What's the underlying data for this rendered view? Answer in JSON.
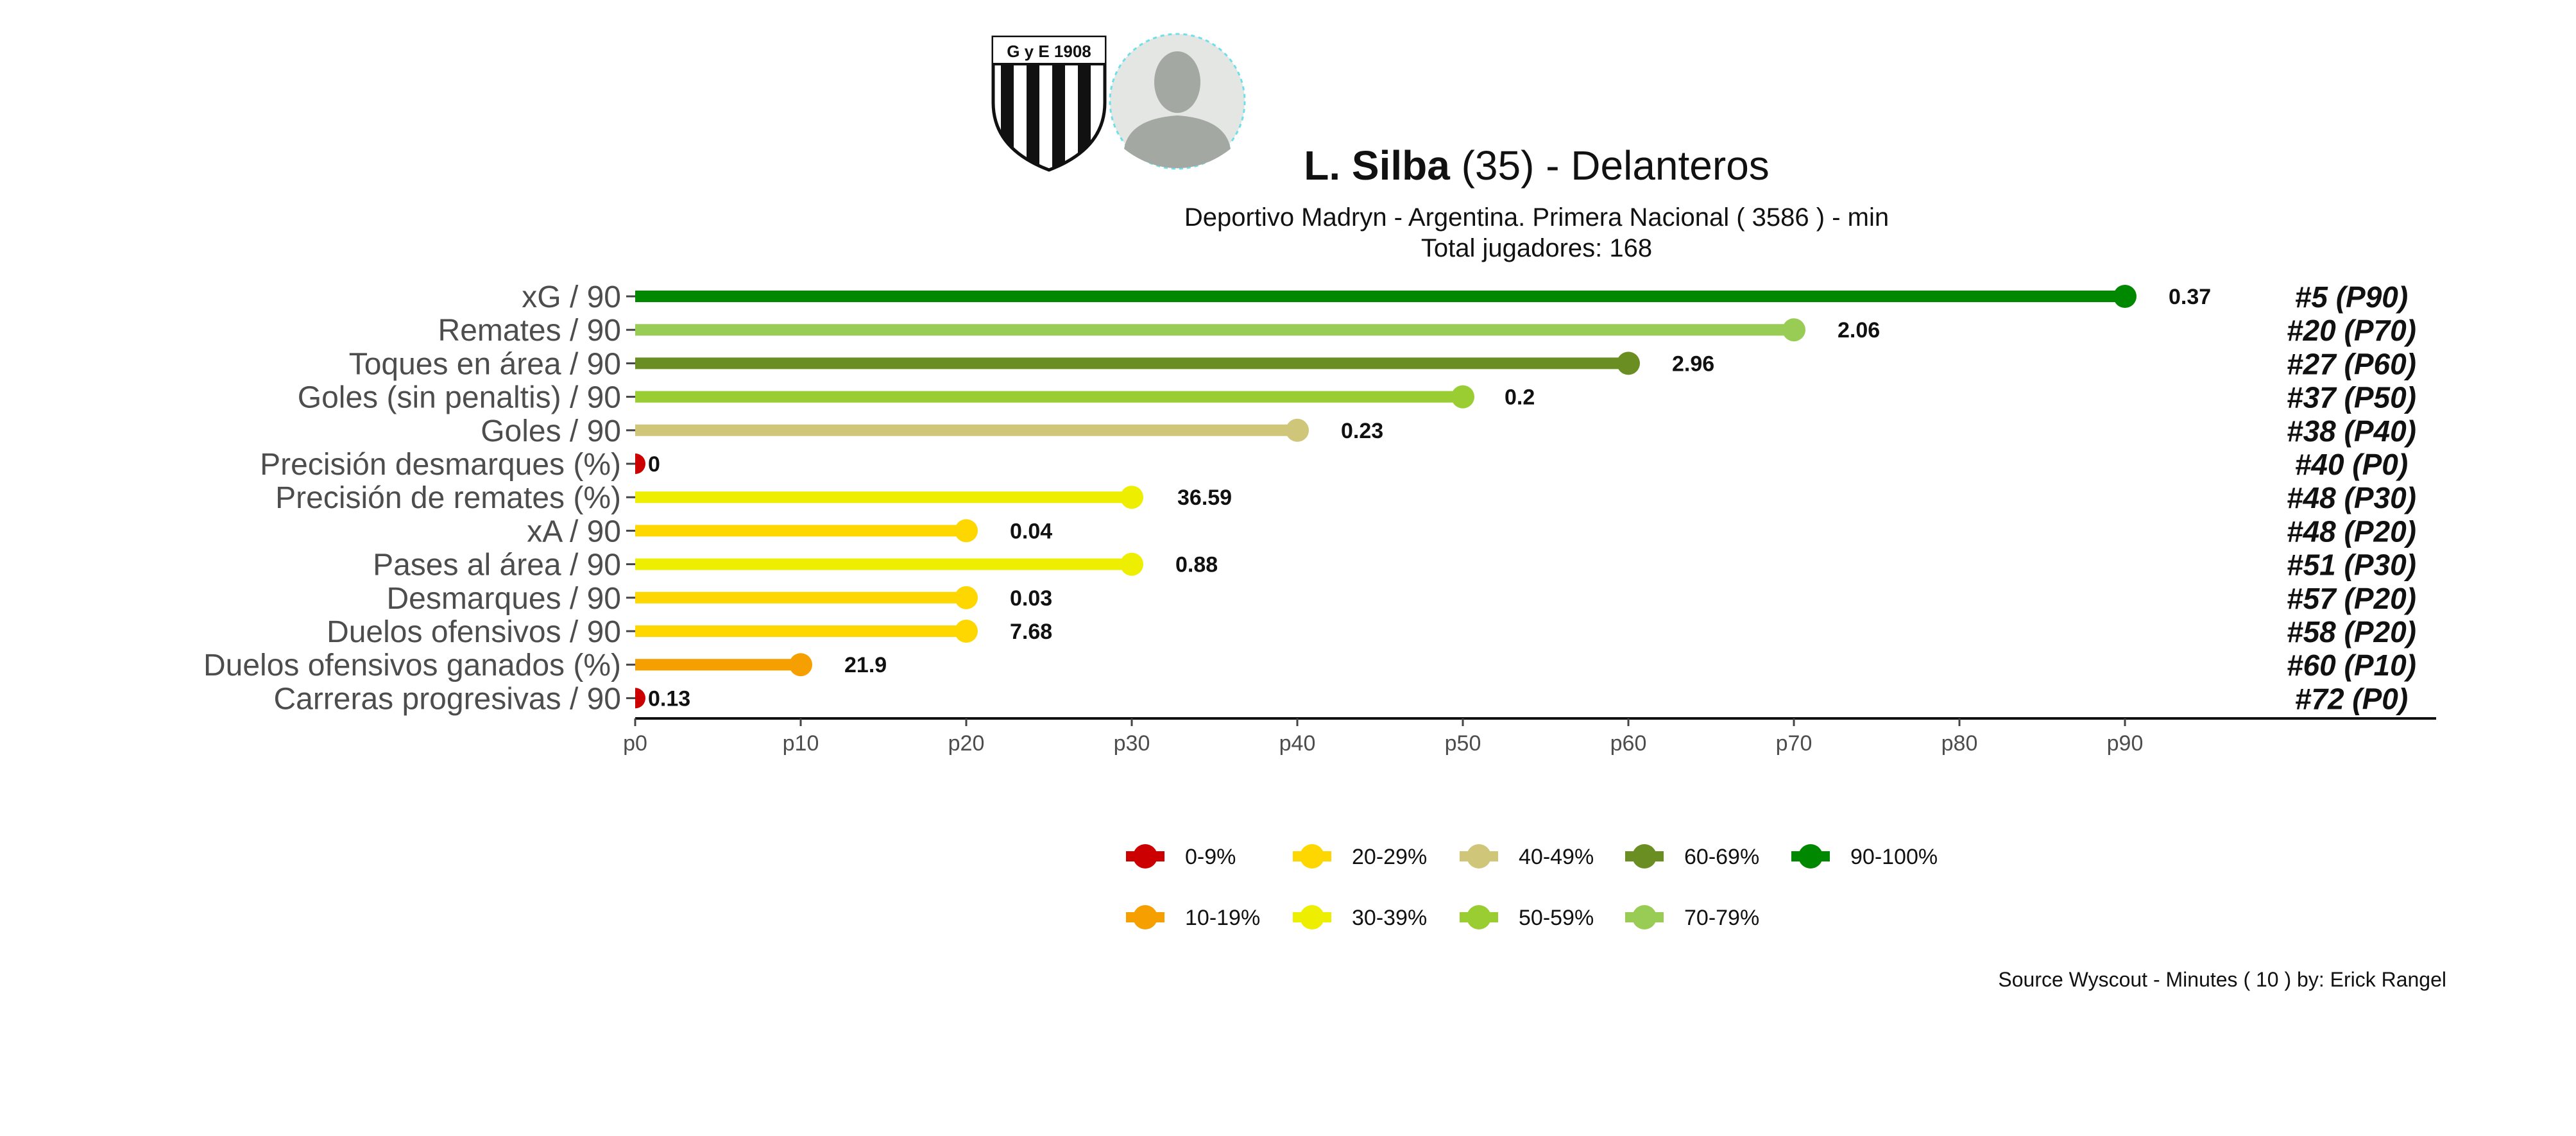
{
  "header": {
    "player_name": "L. Silba",
    "age": "(35)",
    "separator": "-",
    "position": "Delanteros",
    "subtitle": "Deportivo Madryn  -  Argentina. Primera Nacional  ( 3586 ) - min",
    "total_players": "Total jugadores:  168",
    "club_badge_text": "G y E  1908"
  },
  "chart_data": {
    "type": "lollipop",
    "x_ticks": [
      "p0",
      "p10",
      "p20",
      "p30",
      "p40",
      "p50",
      "p60",
      "p70",
      "p80",
      "p90"
    ],
    "xlim": [
      0,
      100
    ],
    "grid": false,
    "metrics": [
      {
        "label": "xG / 90",
        "percentile": 90,
        "value": "0.37",
        "rank": "#5 (P90)",
        "color": "#008800"
      },
      {
        "label": "Remates / 90",
        "percentile": 70,
        "value": "2.06",
        "rank": "#20 (P70)",
        "color": "#99cc55"
      },
      {
        "label": "Toques en área / 90",
        "percentile": 60,
        "value": "2.96",
        "rank": "#27 (P60)",
        "color": "#6b8e23"
      },
      {
        "label": "Goles (sin penaltis) / 90",
        "percentile": 50,
        "value": "0.2",
        "rank": "#37 (P50)",
        "color": "#9acd32"
      },
      {
        "label": "Goles / 90",
        "percentile": 40,
        "value": "0.23",
        "rank": "#38 (P40)",
        "color": "#cfc67a"
      },
      {
        "label": "Precisión desmarques (%)",
        "percentile": 0,
        "value": "0",
        "rank": "#40 (P0)",
        "color": "#cc0000"
      },
      {
        "label": "Precisión de remates (%)",
        "percentile": 30,
        "value": "36.59",
        "rank": "#48 (P30)",
        "color": "#eeee00"
      },
      {
        "label": "xA / 90",
        "percentile": 20,
        "value": "0.04",
        "rank": "#48 (P20)",
        "color": "#ffd700"
      },
      {
        "label": "Pases al área / 90",
        "percentile": 30,
        "value": "0.88",
        "rank": "#51 (P30)",
        "color": "#eeee00"
      },
      {
        "label": "Desmarques / 90",
        "percentile": 20,
        "value": "0.03",
        "rank": "#57 (P20)",
        "color": "#ffd700"
      },
      {
        "label": "Duelos ofensivos / 90",
        "percentile": 20,
        "value": "7.68",
        "rank": "#58 (P20)",
        "color": "#ffd700"
      },
      {
        "label": "Duelos ofensivos ganados (%)",
        "percentile": 10,
        "value": "21.9",
        "rank": "#60 (P10)",
        "color": "#f5a000"
      },
      {
        "label": "Carreras progresivas / 90",
        "percentile": 0,
        "value": "0.13",
        "rank": "#72 (P0)",
        "color": "#cc0000"
      }
    ],
    "legend": {
      "placement": "bottom",
      "items": [
        {
          "label": "0-9%",
          "color": "#cc0000"
        },
        {
          "label": "20-29%",
          "color": "#ffd700"
        },
        {
          "label": "40-49%",
          "color": "#cfc67a"
        },
        {
          "label": "60-69%",
          "color": "#6b8e23"
        },
        {
          "label": "90-100%",
          "color": "#008800"
        },
        {
          "label": "10-19%",
          "color": "#f5a000"
        },
        {
          "label": "30-39%",
          "color": "#eeee00"
        },
        {
          "label": "50-59%",
          "color": "#9acd32"
        },
        {
          "label": "70-79%",
          "color": "#99cc55"
        }
      ]
    }
  },
  "caption": "Source Wyscout - Minutes ( 10 ) by: Erick Rangel"
}
